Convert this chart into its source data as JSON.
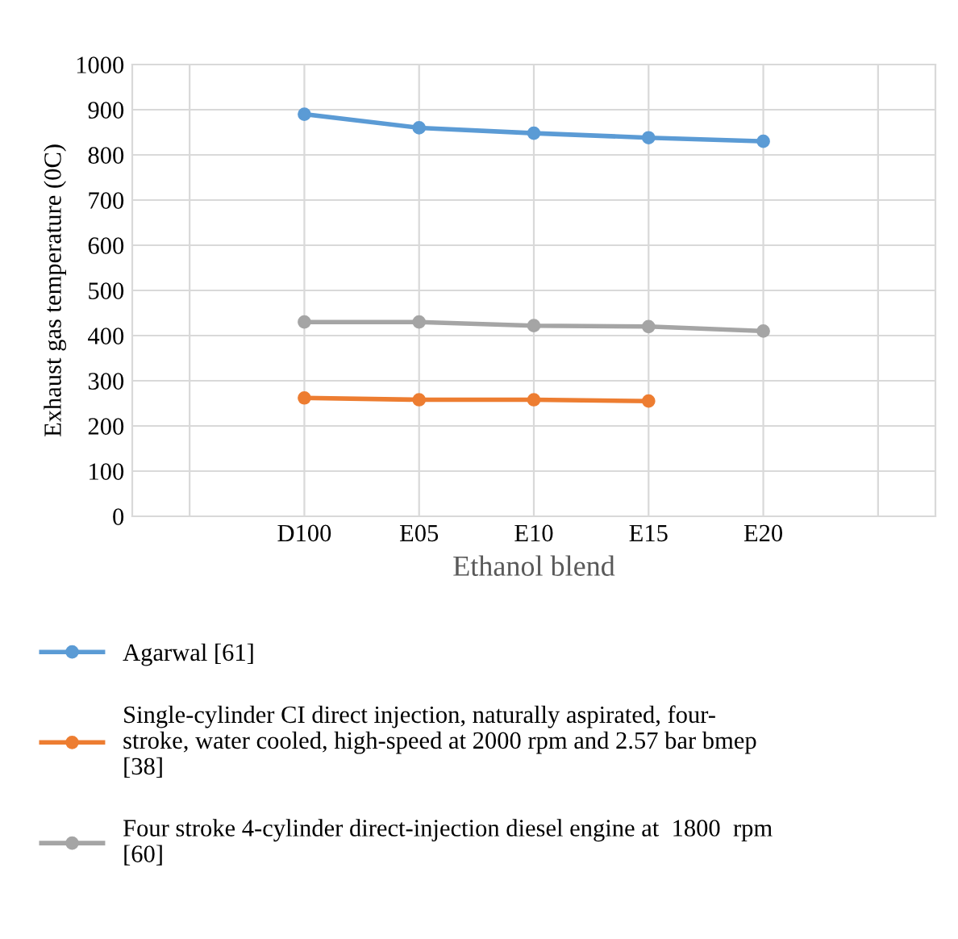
{
  "chart_data": {
    "type": "line",
    "xlabel": "Ethanol blend",
    "ylabel": "Exhaust gas temperature (0C)",
    "categories": [
      null,
      "D100",
      "E05",
      "E10",
      "E15",
      "E20",
      null
    ],
    "series": [
      {
        "name": "Agarwal [61]",
        "color": "#5b9bd5",
        "values": [
          null,
          890,
          860,
          848,
          838,
          830,
          null
        ]
      },
      {
        "name": "Single-cylinder CI direct injection, naturally aspirated, four-\nstroke, water cooled, high-speed at 2000 rpm and 2.57 bar bmep\n[38]",
        "color": "#ed7d31",
        "values": [
          null,
          262,
          258,
          258,
          255,
          null,
          null
        ]
      },
      {
        "name": "Four stroke 4-cylinder direct-injection diesel engine at  1800  rpm\n[60]",
        "color": "#a5a5a5",
        "values": [
          null,
          430,
          430,
          422,
          420,
          410,
          null
        ]
      }
    ],
    "ylim": [
      0,
      1000
    ],
    "yticks": [
      0,
      100,
      200,
      300,
      400,
      500,
      600,
      700,
      800,
      900,
      1000
    ],
    "grid": true,
    "legend": "bottom",
    "marker": "circle",
    "line_style": "solid"
  }
}
